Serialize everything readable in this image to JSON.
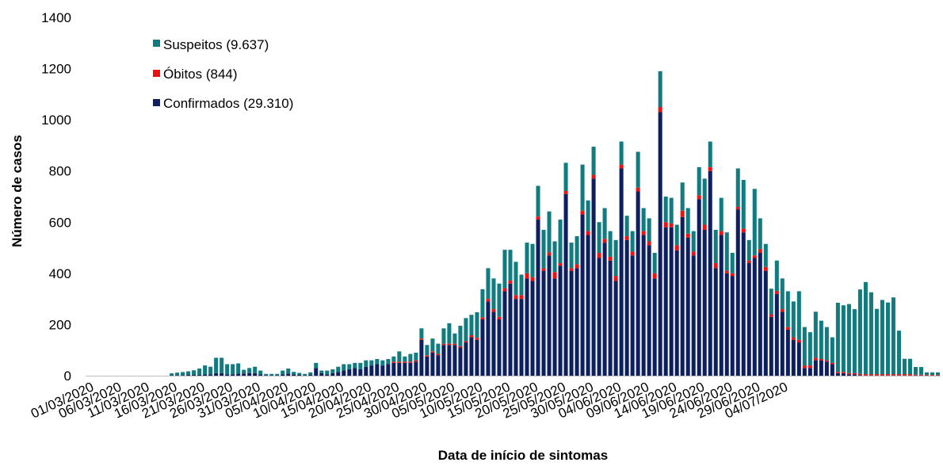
{
  "chart_data": {
    "type": "bar",
    "stacked": true,
    "title": "",
    "xlabel": "Data de início de sintomas",
    "ylabel": "Número de casos",
    "ylim": [
      0,
      1400
    ],
    "yticks": [
      0,
      200,
      400,
      600,
      800,
      1000,
      1200,
      1400
    ],
    "grid": false,
    "legend_position": "top-left",
    "start_date": "01/03/2020",
    "x_tick_labels": [
      "01/03/2020",
      "06/03/2020",
      "11/03/2020",
      "16/03/2020",
      "21/03/2020",
      "26/03/2020",
      "31/03/2020",
      "05/04/2020",
      "10/04/2020",
      "15/04/2020",
      "20/04/2020",
      "25/04/2020",
      "30/04/2020",
      "05/05/2020",
      "10/05/2020",
      "15/05/2020",
      "20/05/2020",
      "25/05/2020",
      "30/05/2020",
      "04/06/2020",
      "09/06/2020",
      "14/06/2020",
      "19/06/2020",
      "24/06/2020",
      "29/06/2020",
      "04/07/2020"
    ],
    "series": [
      {
        "name": "Suspeitos (9.637)",
        "color": "#117C80",
        "values": [
          0,
          0,
          0,
          0,
          0,
          0,
          0,
          0,
          0,
          0,
          0,
          0,
          0,
          0,
          0,
          7,
          10,
          12,
          14,
          18,
          25,
          35,
          30,
          60,
          60,
          40,
          40,
          40,
          15,
          20,
          25,
          15,
          5,
          5,
          5,
          15,
          20,
          10,
          8,
          5,
          10,
          20,
          10,
          15,
          15,
          20,
          25,
          20,
          20,
          25,
          25,
          20,
          20,
          20,
          20,
          20,
          40,
          20,
          30,
          30,
          40,
          40,
          50,
          40,
          60,
          80,
          40,
          80,
          90,
          80,
          100,
          110,
          120,
          120,
          130,
          150,
          120,
          130,
          80,
          120,
          130,
          120,
          150,
          160,
          120,
          170,
          110,
          100,
          110,
          180,
          120,
          110,
          120,
          120,
          100,
          140,
          90,
          80,
          80,
          140,
          90,
          90,
          80,
          140,
          100,
          100,
          80,
          110,
          100,
          80,
          110,
          180,
          100,
          130,
          130,
          150,
          80,
          150,
          190,
          80,
          260,
          120,
          90,
          100,
          120,
          120,
          140,
          140,
          190,
          150,
          130,
          180,
          150,
          130,
          100,
          270,
          260,
          270,
          250,
          330,
          360,
          320,
          255,
          290,
          280,
          300,
          170,
          60,
          60,
          30,
          30,
          10,
          10,
          10
        ]
      },
      {
        "name": "Óbitos (844)",
        "color": "#EE1111",
        "values": [
          0,
          0,
          0,
          0,
          0,
          0,
          0,
          0,
          0,
          0,
          0,
          0,
          0,
          0,
          0,
          0,
          0,
          0,
          0,
          0,
          0,
          0,
          0,
          0,
          0,
          0,
          0,
          0,
          0,
          0,
          0,
          0,
          0,
          0,
          0,
          0,
          0,
          0,
          0,
          0,
          0,
          0,
          0,
          0,
          0,
          0,
          0,
          0,
          0,
          0,
          0,
          0,
          0,
          0,
          0,
          5,
          5,
          5,
          5,
          5,
          5,
          5,
          5,
          5,
          5,
          5,
          5,
          5,
          5,
          8,
          8,
          8,
          10,
          10,
          10,
          12,
          12,
          15,
          15,
          20,
          15,
          12,
          10,
          12,
          25,
          10,
          12,
          10,
          15,
          15,
          15,
          15,
          20,
          15,
          15,
          20,
          15,
          15,
          15,
          15,
          15,
          15,
          20,
          20,
          20,
          15,
          20,
          25,
          15,
          15,
          15,
          20,
          15,
          20,
          15,
          10,
          10,
          10,
          15,
          10,
          10,
          15,
          15,
          10,
          10,
          10,
          10,
          10,
          10,
          10,
          10,
          10,
          5,
          5,
          5,
          5,
          5,
          5,
          5,
          5,
          5,
          5,
          5,
          5,
          5,
          5,
          5,
          5,
          5,
          3,
          3,
          2,
          2,
          2,
          2,
          2,
          2,
          2,
          2
        ]
      },
      {
        "name": "Confirmados (29.310)",
        "color": "#0D1F5E",
        "values": [
          0,
          0,
          0,
          0,
          0,
          0,
          0,
          0,
          0,
          0,
          0,
          0,
          0,
          0,
          0,
          2,
          2,
          2,
          3,
          3,
          3,
          5,
          5,
          10,
          10,
          5,
          5,
          8,
          8,
          10,
          10,
          5,
          2,
          2,
          2,
          5,
          8,
          5,
          3,
          2,
          3,
          30,
          10,
          5,
          10,
          15,
          20,
          25,
          30,
          25,
          35,
          40,
          45,
          40,
          45,
          50,
          50,
          50,
          50,
          55,
          140,
          75,
          90,
          80,
          120,
          120,
          120,
          110,
          130,
          150,
          140,
          220,
          290,
          250,
          220,
          330,
          360,
          300,
          300,
          380,
          370,
          610,
          410,
          470,
          380,
          430,
          710,
          410,
          420,
          630,
          550,
          770,
          460,
          520,
          450,
          370,
          810,
          530,
          470,
          720,
          550,
          510,
          380,
          1030,
          580,
          580,
          490,
          620,
          540,
          470,
          690,
          570,
          800,
          420,
          550,
          400,
          390,
          650,
          560,
          440,
          460,
          480,
          410,
          230,
          320,
          250,
          180,
          140,
          130,
          30,
          30,
          60,
          60,
          55,
          45,
          10,
          10,
          5,
          5,
          2,
          1,
          1,
          1,
          1,
          1,
          1,
          1,
          1,
          1,
          1,
          1,
          1,
          1,
          1,
          1,
          1,
          1,
          1,
          1,
          1,
          1,
          1,
          1
        ]
      }
    ]
  }
}
